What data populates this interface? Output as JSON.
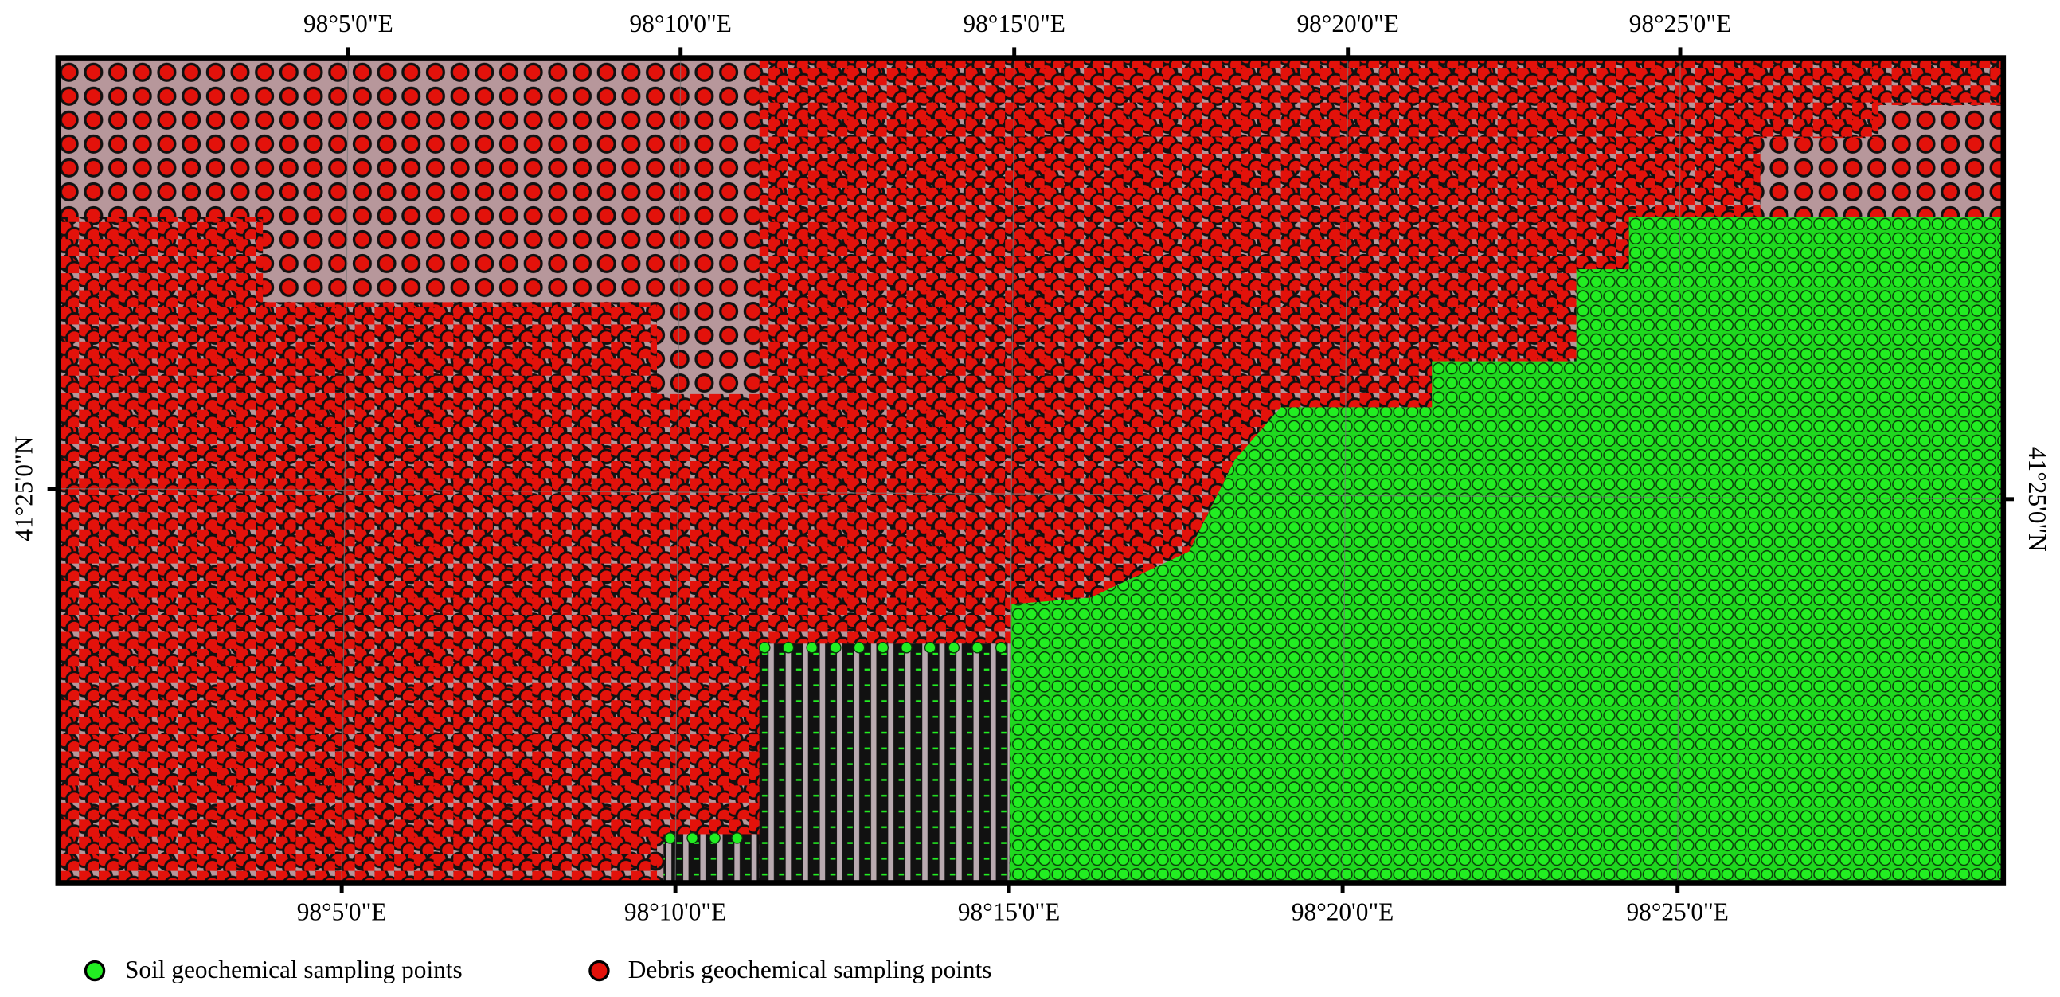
{
  "map": {
    "top_labels": [
      "98°5'0\"E",
      "98°10'0\"E",
      "98°15'0\"E",
      "98°20'0\"E",
      "98°25'0\"E"
    ],
    "bottom_labels": [
      "98°5'0\"E",
      "98°10'0\"E",
      "98°15'0\"E",
      "98°20'0\"E",
      "98°25'0\"E"
    ],
    "left_label": "41°25'0\"N",
    "right_label": "41°25'0\"N",
    "legend": [
      "Soil geochemical sampling points",
      "Debris geochemical sampling points"
    ]
  }
}
